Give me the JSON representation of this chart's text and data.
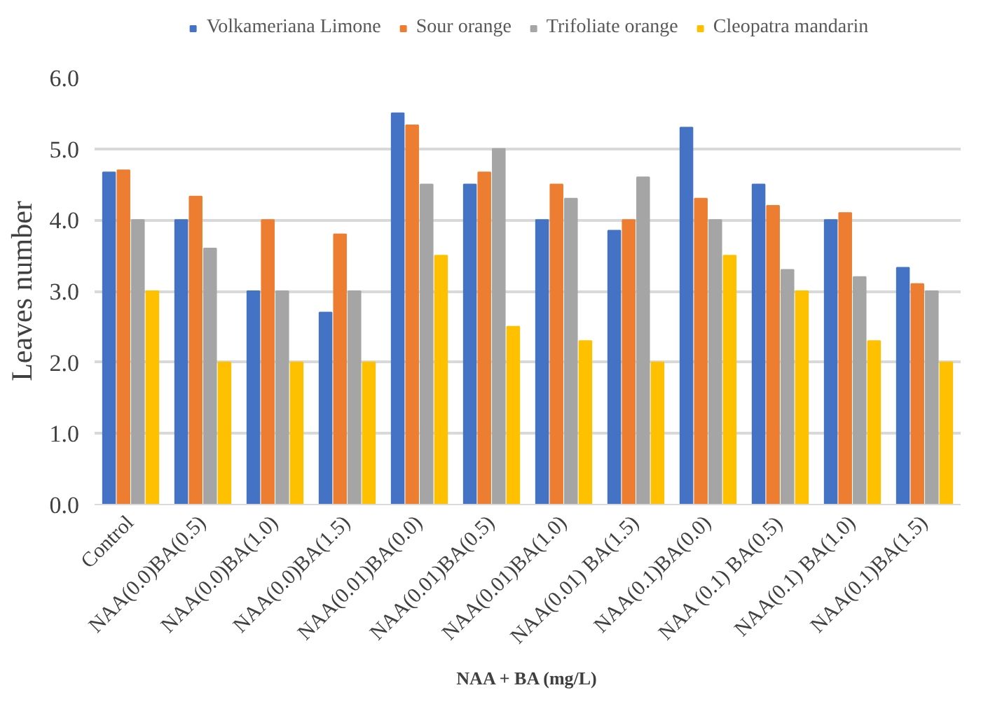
{
  "chart_data": {
    "type": "bar",
    "xlabel": "NAA + BA (mg/L)",
    "ylabel": "Leaves number",
    "categories": [
      "Control",
      "NAA(0.0)BA(0.5)",
      "NAA(0.0)BA(1.0)",
      "NAA(0.0)BA(1.5)",
      "NAA(0.01)BA(0.0)",
      "NAA(0.01)BA(0.5)",
      "NAA(0.01)BA(1.0)",
      "NAA(0.01) BA(1.5)",
      "NAA(0.1)BA(0.0)",
      "NAA (0.1) BA(0.5)",
      "NAA(0.1) BA(1.0)",
      "NAA(0.1)BA(1.5)"
    ],
    "series": [
      {
        "name": "Volkameriana Limone",
        "color": "#4472c4",
        "values": [
          4.67,
          4.0,
          3.0,
          2.7,
          5.5,
          4.5,
          4.0,
          3.85,
          5.3,
          4.5,
          4.0,
          3.33
        ]
      },
      {
        "name": "Sour orange",
        "color": "#ed7d31",
        "values": [
          4.7,
          4.33,
          4.0,
          3.8,
          5.33,
          4.67,
          4.5,
          4.0,
          4.3,
          4.2,
          4.1,
          3.1
        ]
      },
      {
        "name": "Trifoliate orange",
        "color": "#a5a5a5",
        "values": [
          4.0,
          3.6,
          3.0,
          3.0,
          4.5,
          5.0,
          4.3,
          4.6,
          4.0,
          3.3,
          3.2,
          3.0
        ]
      },
      {
        "name": "Cleopatra mandarin",
        "color": "#ffc000",
        "values": [
          3.0,
          2.0,
          2.0,
          2.0,
          3.5,
          2.5,
          2.3,
          2.0,
          3.5,
          3.0,
          2.3,
          2.0
        ]
      }
    ],
    "ylim": [
      0,
      6
    ],
    "yticks": [
      {
        "value": 0,
        "label": "0.0"
      },
      {
        "value": 1,
        "label": "1.0"
      },
      {
        "value": 2,
        "label": "2.0"
      },
      {
        "value": 3,
        "label": "3.0"
      },
      {
        "value": 4,
        "label": "4.0"
      },
      {
        "value": 5,
        "label": "5.0"
      },
      {
        "value": 6,
        "label": "6.0"
      }
    ],
    "grid": "y",
    "legend": "top"
  }
}
